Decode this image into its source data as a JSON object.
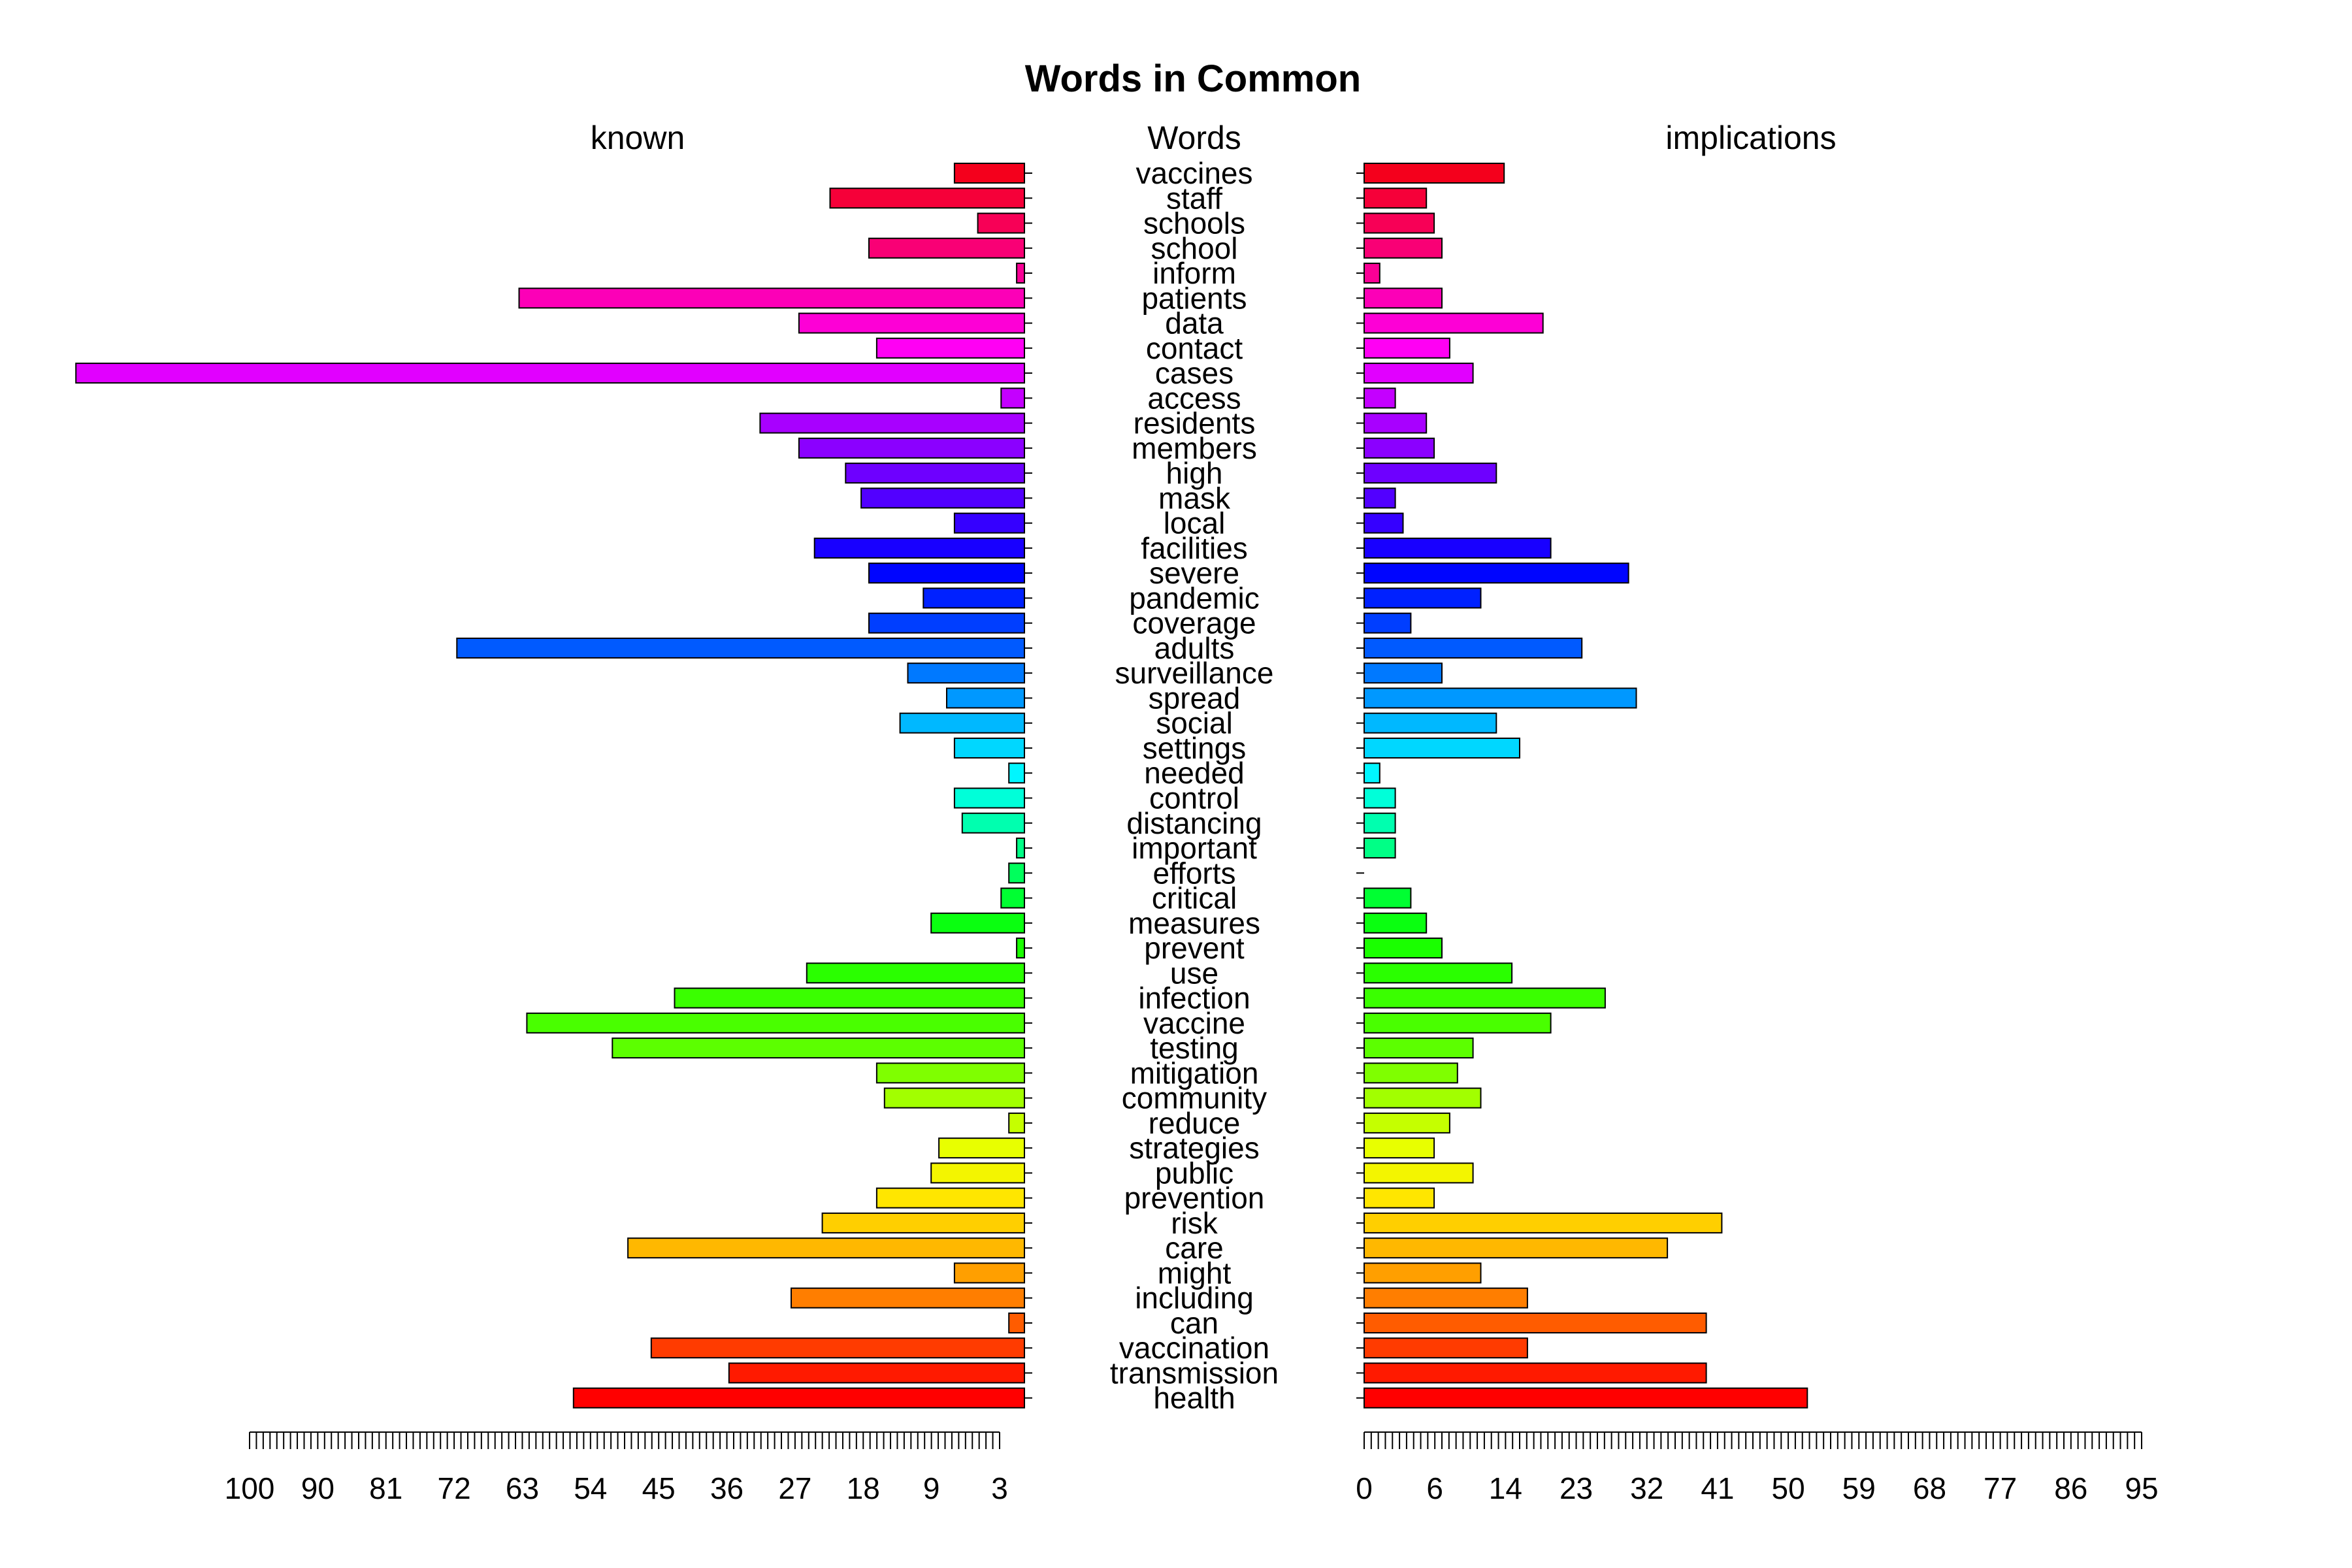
{
  "chart_data": {
    "type": "bar",
    "title": "Words in Common",
    "left_label": "known",
    "center_label": "Words",
    "right_label": "implications",
    "categories": [
      "vaccines",
      "staff",
      "schools",
      "school",
      "inform",
      "patients",
      "data",
      "contact",
      "cases",
      "access",
      "residents",
      "members",
      "high",
      "mask",
      "local",
      "facilities",
      "severe",
      "pandemic",
      "coverage",
      "adults",
      "surveillance",
      "spread",
      "social",
      "settings",
      "needed",
      "control",
      "distancing",
      "important",
      "efforts",
      "critical",
      "measures",
      "prevent",
      "use",
      "infection",
      "vaccine",
      "testing",
      "mitigation",
      "community",
      "reduce",
      "strategies",
      "public",
      "prevention",
      "risk",
      "care",
      "might",
      "including",
      "can",
      "vaccination",
      "transmission",
      "health"
    ],
    "series": [
      {
        "name": "known",
        "values": [
          9,
          25,
          6,
          20,
          1,
          65,
          29,
          19,
          122,
          3,
          34,
          29,
          23,
          21,
          9,
          27,
          20,
          13,
          20,
          73,
          15,
          10,
          16,
          9,
          2,
          9,
          8,
          1,
          2,
          3,
          12,
          1,
          28,
          45,
          64,
          53,
          19,
          18,
          2,
          11,
          12,
          19,
          26,
          51,
          9,
          30,
          2,
          48,
          38,
          58
        ]
      },
      {
        "name": "implications",
        "values": [
          18,
          8,
          9,
          10,
          2,
          10,
          23,
          11,
          14,
          4,
          8,
          9,
          17,
          4,
          5,
          24,
          34,
          15,
          6,
          28,
          10,
          35,
          17,
          20,
          2,
          4,
          4,
          4,
          0,
          6,
          8,
          10,
          19,
          31,
          24,
          14,
          12,
          15,
          11,
          9,
          14,
          9,
          46,
          39,
          15,
          21,
          44,
          21,
          44,
          57
        ]
      }
    ],
    "left_axis_ticks": [
      "100",
      "90",
      "81",
      "72",
      "63",
      "54",
      "45",
      "36",
      "27",
      "18",
      "9",
      "3"
    ],
    "right_axis_ticks": [
      "0",
      "6",
      "14",
      "23",
      "32",
      "41",
      "50",
      "59",
      "68",
      "77",
      "86",
      "95"
    ],
    "colors": [
      "#F4001C",
      "#F60039",
      "#F70056",
      "#F90075",
      "#FA0096",
      "#FC00B7",
      "#FD00D6",
      "#FF00F4",
      "#E100FF",
      "#C400FF",
      "#A800FF",
      "#8B00FF",
      "#6E00FF",
      "#5200FF",
      "#3500FF",
      "#1800FF",
      "#0005FF",
      "#0021FF",
      "#003EFF",
      "#005AFF",
      "#0079FF",
      "#0098FF",
      "#00B8FF",
      "#00D7FF",
      "#00F6FF",
      "#00FFD9",
      "#00FFAF",
      "#00FF86",
      "#00FF5C",
      "#00FF32",
      "#0AFF10",
      "#1AFF00",
      "#2AFF00",
      "#3AFF00",
      "#49FF00",
      "#5CFF00",
      "#7FFF00",
      "#A2FF00",
      "#C5FF00",
      "#E8FF00",
      "#F3F500",
      "#FFE600",
      "#FFCF00",
      "#FFB800",
      "#FF9F00",
      "#FF7E00",
      "#FF5C00",
      "#FF3B00",
      "#FF1A00",
      "#FF0000"
    ]
  }
}
